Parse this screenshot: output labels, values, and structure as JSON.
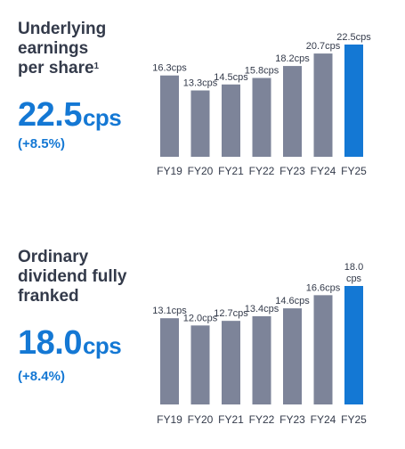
{
  "panels": [
    {
      "heading_lines": [
        "Underlying",
        "earnings",
        "per share"
      ],
      "footnote_mark": "1",
      "value": "22.5",
      "unit": "cps",
      "change": "(+8.5%)"
    },
    {
      "heading_lines": [
        "Ordinary",
        "dividend fully",
        "franked"
      ],
      "footnote_mark": "",
      "value": "18.0",
      "unit": "cps",
      "change": "(+8.4%)"
    }
  ],
  "colors": {
    "bar": "#7d8499",
    "highlight": "#1478d4",
    "text": "#333a4a",
    "accent": "#1478d4"
  },
  "chart_data": [
    {
      "type": "bar",
      "categories": [
        "FY19",
        "FY20",
        "FY21",
        "FY22",
        "FY23",
        "FY24",
        "FY25"
      ],
      "values": [
        16.3,
        13.3,
        14.5,
        15.8,
        18.2,
        20.7,
        22.5
      ],
      "data_labels": [
        "16.3cps",
        "13.3cps",
        "14.5cps",
        "15.8cps",
        "18.2cps",
        "20.7cps",
        "22.5cps"
      ],
      "highlight_index": 6,
      "ylim": [
        0,
        22.5
      ],
      "grid": false,
      "title": "",
      "xlabel": "",
      "ylabel": ""
    },
    {
      "type": "bar",
      "categories": [
        "FY19",
        "FY20",
        "FY21",
        "FY22",
        "FY23",
        "FY24",
        "FY25"
      ],
      "values": [
        13.1,
        12.0,
        12.7,
        13.4,
        14.6,
        16.6,
        18.0
      ],
      "data_labels": [
        "13.1cps",
        "12.0cps",
        "12.7cps",
        "13.4cps",
        "14.6cps",
        "16.6cps",
        "18.0\ncps"
      ],
      "highlight_index": 6,
      "ylim": [
        0,
        18.0
      ],
      "grid": false,
      "title": "",
      "xlabel": "",
      "ylabel": ""
    }
  ]
}
